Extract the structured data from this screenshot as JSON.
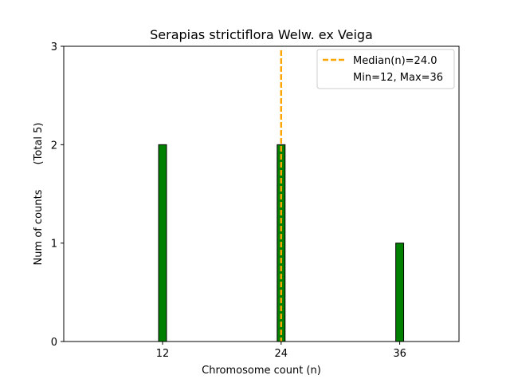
{
  "chart_data": {
    "type": "bar",
    "title": "Serapias strictiflora Welw. ex Veiga",
    "xlabel": "Chromosome count (n)",
    "ylabel": "Num of counts",
    "ylabel_note": "(Total 5)",
    "xlim": [
      2,
      42
    ],
    "ylim": [
      0,
      3
    ],
    "x_ticks": [
      12,
      24,
      36
    ],
    "y_ticks": [
      0,
      1,
      2,
      3
    ],
    "bars": [
      {
        "x": 12,
        "value": 2
      },
      {
        "x": 24,
        "value": 2
      },
      {
        "x": 36,
        "value": 1
      }
    ],
    "bar_width": 0.8,
    "bar_color": "#008000",
    "bar_edge_color": "#000000",
    "baseline_range": [
      5,
      38
    ],
    "median": 24.0,
    "median_color": "#ffa500",
    "legend": [
      {
        "label": "Median(n)=24.0",
        "style": "dashed-line",
        "color": "#ffa500"
      },
      {
        "label": "Min=12, Max=36",
        "style": "none"
      }
    ],
    "legend_position": "top-right"
  }
}
